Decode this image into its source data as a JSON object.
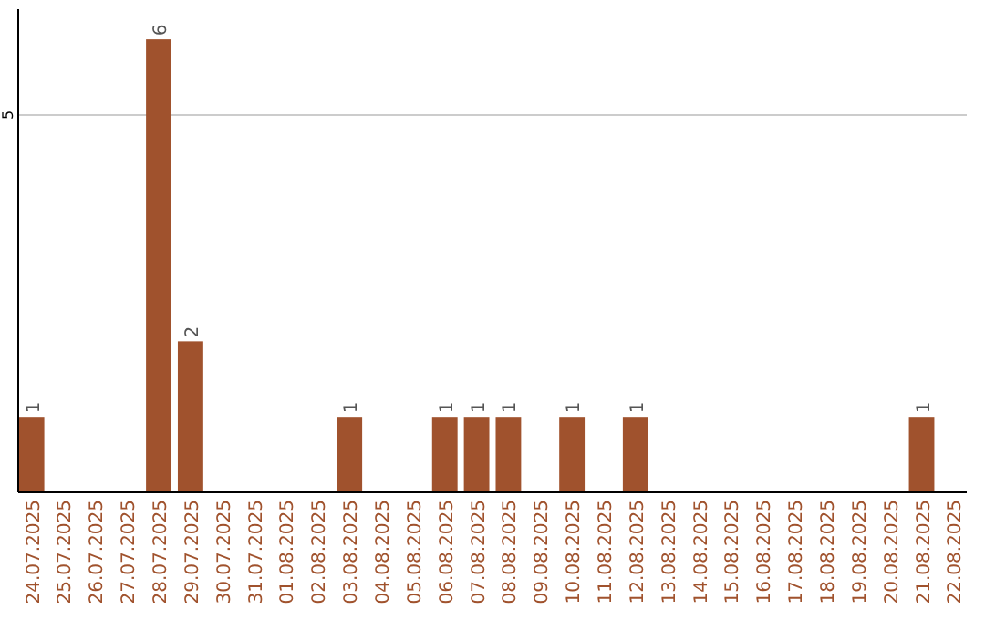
{
  "chart_data": {
    "type": "bar",
    "categories": [
      "24.07.2025",
      "25.07.2025",
      "26.07.2025",
      "27.07.2025",
      "28.07.2025",
      "29.07.2025",
      "30.07.2025",
      "31.07.2025",
      "01.08.2025",
      "02.08.2025",
      "03.08.2025",
      "04.08.2025",
      "05.08.2025",
      "06.08.2025",
      "07.08.2025",
      "08.08.2025",
      "09.08.2025",
      "10.08.2025",
      "11.08.2025",
      "12.08.2025",
      "13.08.2025",
      "14.08.2025",
      "15.08.2025",
      "16.08.2025",
      "17.08.2025",
      "18.08.2025",
      "19.08.2025",
      "20.08.2025",
      "21.08.2025",
      "22.08.2025"
    ],
    "values": [
      1,
      0,
      0,
      0,
      6,
      2,
      0,
      0,
      0,
      0,
      1,
      0,
      0,
      1,
      1,
      1,
      0,
      1,
      0,
      1,
      0,
      0,
      0,
      0,
      0,
      0,
      0,
      0,
      1,
      0
    ],
    "color": "#a0522d",
    "ylim": [
      0,
      6.4
    ],
    "yticks": [
      5
    ],
    "grid": "y",
    "value_labels": [
      "1",
      null,
      null,
      null,
      "6",
      "2",
      null,
      null,
      null,
      null,
      "1",
      null,
      null,
      "1",
      "1",
      "1",
      null,
      "1",
      null,
      "1",
      null,
      null,
      null,
      null,
      null,
      null,
      null,
      null,
      "1",
      null
    ]
  }
}
